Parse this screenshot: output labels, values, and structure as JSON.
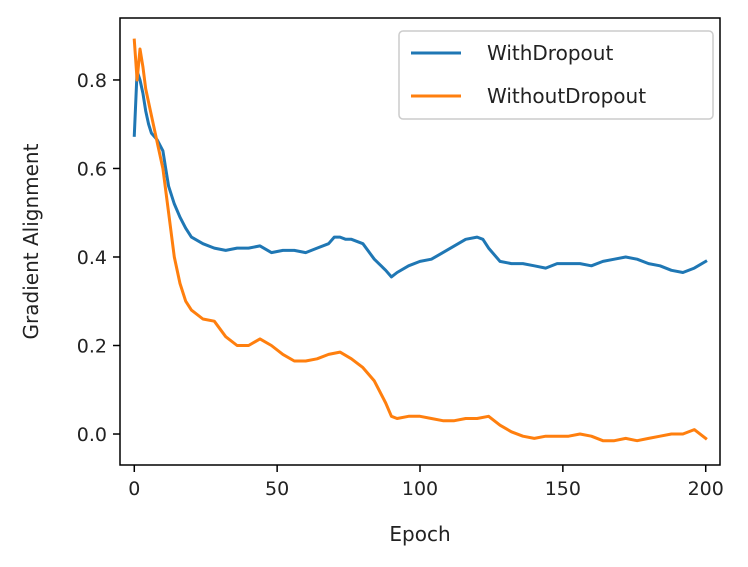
{
  "chart_data": {
    "type": "line",
    "xlabel": "Epoch",
    "ylabel": "Gradient Alignment",
    "xlim": [
      -5,
      205
    ],
    "ylim": [
      -0.07,
      0.94
    ],
    "xticks": [
      0,
      50,
      100,
      150,
      200
    ],
    "yticks": [
      0.0,
      0.2,
      0.4,
      0.6,
      0.8
    ],
    "xtick_labels": [
      "0",
      "50",
      "100",
      "150",
      "200"
    ],
    "ytick_labels": [
      "0.0",
      "0.2",
      "0.4",
      "0.6",
      "0.8"
    ],
    "grid": false,
    "legend_position": "top-right",
    "series": [
      {
        "name": "WithDropout",
        "color": "#1f77b4",
        "x": [
          0,
          1,
          2,
          3,
          4,
          5,
          6,
          8,
          10,
          11,
          12,
          14,
          16,
          18,
          20,
          24,
          28,
          32,
          36,
          40,
          44,
          48,
          52,
          56,
          60,
          64,
          68,
          70,
          72,
          74,
          76,
          80,
          84,
          88,
          90,
          92,
          96,
          100,
          104,
          108,
          112,
          116,
          120,
          122,
          124,
          128,
          132,
          136,
          140,
          144,
          148,
          152,
          156,
          160,
          164,
          168,
          172,
          176,
          180,
          184,
          188,
          192,
          196,
          200
        ],
        "y": [
          0.675,
          0.82,
          0.8,
          0.77,
          0.73,
          0.7,
          0.68,
          0.665,
          0.64,
          0.6,
          0.56,
          0.52,
          0.49,
          0.465,
          0.445,
          0.43,
          0.42,
          0.415,
          0.42,
          0.42,
          0.425,
          0.41,
          0.415,
          0.415,
          0.41,
          0.42,
          0.43,
          0.445,
          0.445,
          0.44,
          0.44,
          0.43,
          0.395,
          0.37,
          0.355,
          0.365,
          0.38,
          0.39,
          0.395,
          0.41,
          0.425,
          0.44,
          0.445,
          0.44,
          0.42,
          0.39,
          0.385,
          0.385,
          0.38,
          0.375,
          0.385,
          0.385,
          0.385,
          0.38,
          0.39,
          0.395,
          0.4,
          0.395,
          0.385,
          0.38,
          0.37,
          0.365,
          0.375,
          0.39
        ]
      },
      {
        "name": "WithoutDropout",
        "color": "#ff7f0e",
        "x": [
          0,
          1,
          2,
          3,
          4,
          6,
          8,
          10,
          12,
          14,
          16,
          18,
          20,
          24,
          28,
          32,
          36,
          40,
          44,
          48,
          52,
          56,
          60,
          64,
          68,
          72,
          76,
          80,
          84,
          88,
          90,
          92,
          96,
          100,
          104,
          108,
          112,
          116,
          120,
          124,
          128,
          132,
          136,
          140,
          144,
          148,
          152,
          156,
          160,
          164,
          168,
          172,
          176,
          180,
          184,
          188,
          192,
          196,
          200
        ],
        "y": [
          0.89,
          0.8,
          0.87,
          0.83,
          0.78,
          0.72,
          0.66,
          0.6,
          0.5,
          0.4,
          0.34,
          0.3,
          0.28,
          0.26,
          0.255,
          0.22,
          0.2,
          0.2,
          0.215,
          0.2,
          0.18,
          0.165,
          0.165,
          0.17,
          0.18,
          0.185,
          0.17,
          0.15,
          0.12,
          0.07,
          0.04,
          0.035,
          0.04,
          0.04,
          0.035,
          0.03,
          0.03,
          0.035,
          0.035,
          0.04,
          0.02,
          0.005,
          -0.005,
          -0.01,
          -0.005,
          -0.005,
          -0.005,
          0.0,
          -0.005,
          -0.015,
          -0.015,
          -0.01,
          -0.015,
          -0.01,
          -0.005,
          0.0,
          0.0,
          0.01,
          -0.01
        ]
      }
    ]
  }
}
